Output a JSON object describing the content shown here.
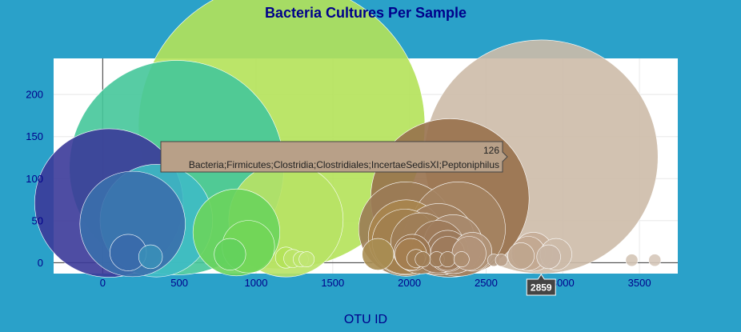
{
  "colors": {
    "page_bg": "#2aa1c9",
    "plot_bg": "#ffffff",
    "title": "#00008b",
    "grid": "#e8e8e8"
  },
  "chart_data": {
    "type": "scatter",
    "title": "Bacteria Cultures Per Sample",
    "xlabel": "OTU ID",
    "ylabel": "",
    "xlim": [
      -320,
      3750
    ],
    "ylim": [
      -13,
      243
    ],
    "xticks": [
      "0",
      "500",
      "1000",
      "1500",
      "2000",
      "2500",
      "3000",
      "3500"
    ],
    "yticks": [
      "0",
      "50",
      "100",
      "150",
      "200"
    ],
    "grid": true,
    "legend": "none",
    "bubble_size_encodes": "value",
    "points": [
      {
        "x": 41,
        "y": 71,
        "color": "#3b3a99"
      },
      {
        "x": 195,
        "y": 46,
        "color": "#3a6fac"
      },
      {
        "x": 350,
        "y": 50,
        "color": "#3ebbc4"
      },
      {
        "x": 482,
        "y": 113,
        "color": "#45c79a"
      },
      {
        "x": 1167,
        "y": 163,
        "color": "#b4e259"
      },
      {
        "x": 1195,
        "y": 51,
        "color": "#b8e265"
      },
      {
        "x": 872,
        "y": 36,
        "color": "#6ad45c"
      },
      {
        "x": 950,
        "y": 19,
        "color": "#72d658"
      },
      {
        "x": 2264,
        "y": 77,
        "color": "#98714d"
      },
      {
        "x": 2859,
        "y": 126,
        "color": "#cdbba8"
      },
      {
        "x": 1977,
        "y": 40,
        "color": "#9b7b55"
      },
      {
        "x": 1977,
        "y": 30,
        "color": "#a8854e"
      },
      {
        "x": 1970,
        "y": 25,
        "color": "#a27f4f"
      },
      {
        "x": 2318,
        "y": 40,
        "color": "#a48362"
      },
      {
        "x": 2191,
        "y": 28,
        "color": "#a1805f"
      },
      {
        "x": 2077,
        "y": 23,
        "color": "#9e7d58"
      },
      {
        "x": 2285,
        "y": 22,
        "color": "#a88a6e"
      },
      {
        "x": 2187,
        "y": 19,
        "color": "#9c7a5a"
      },
      {
        "x": 2249,
        "y": 14,
        "color": "#9b7a5c"
      },
      {
        "x": 2019,
        "y": 12,
        "color": "#9a7650"
      },
      {
        "x": 2249,
        "y": 11,
        "color": "#9e7b5c"
      },
      {
        "x": 2411,
        "y": 13,
        "color": "#b19479"
      },
      {
        "x": 2009,
        "y": 10,
        "color": "#a58050"
      },
      {
        "x": 1795,
        "y": 10,
        "color": "#a98d52"
      },
      {
        "x": 2389,
        "y": 11,
        "color": "#b29479"
      },
      {
        "x": 2775,
        "y": 11,
        "color": "#c2a991"
      },
      {
        "x": 2808,
        "y": 13,
        "color": "#c5ad98"
      },
      {
        "x": 2956,
        "y": 10,
        "color": "#ccbaa9"
      },
      {
        "x": 2728,
        "y": 8,
        "color": "#bfa58e"
      },
      {
        "x": 2908,
        "y": 7,
        "color": "#c8b5a4"
      },
      {
        "x": 2178,
        "y": 4,
        "color": "#9d7c5a"
      },
      {
        "x": 2249,
        "y": 4,
        "color": "#a07f5e"
      },
      {
        "x": 2043,
        "y": 5,
        "color": "#a07d53"
      },
      {
        "x": 2087,
        "y": 4,
        "color": "#a07e56"
      },
      {
        "x": 166,
        "y": 12,
        "color": "#3a6aab"
      },
      {
        "x": 312,
        "y": 7,
        "color": "#3a8fb8"
      },
      {
        "x": 830,
        "y": 10,
        "color": "#63d15d"
      },
      {
        "x": 1195,
        "y": 6,
        "color": "#b4e259"
      },
      {
        "x": 1240,
        "y": 5,
        "color": "#bbe36a"
      },
      {
        "x": 1292,
        "y": 4,
        "color": "#bbe36a"
      },
      {
        "x": 1330,
        "y": 4,
        "color": "#c0e473"
      },
      {
        "x": 2340,
        "y": 4,
        "color": "#ad8e70"
      },
      {
        "x": 2550,
        "y": 3,
        "color": "#b59c86"
      },
      {
        "x": 2600,
        "y": 3,
        "color": "#b9a08a"
      },
      {
        "x": 3450,
        "y": 3,
        "color": "#d4c5b6"
      },
      {
        "x": 3600,
        "y": 3,
        "color": "#d6c8ba"
      }
    ],
    "tooltip": {
      "value": "126",
      "text": "Bacteria;Firmicutes;Clostridia;Clostridiales;IncertaeSedisXI;Peptoniphilus",
      "bg": "#b8a088"
    },
    "hover_x_label": "2859"
  }
}
